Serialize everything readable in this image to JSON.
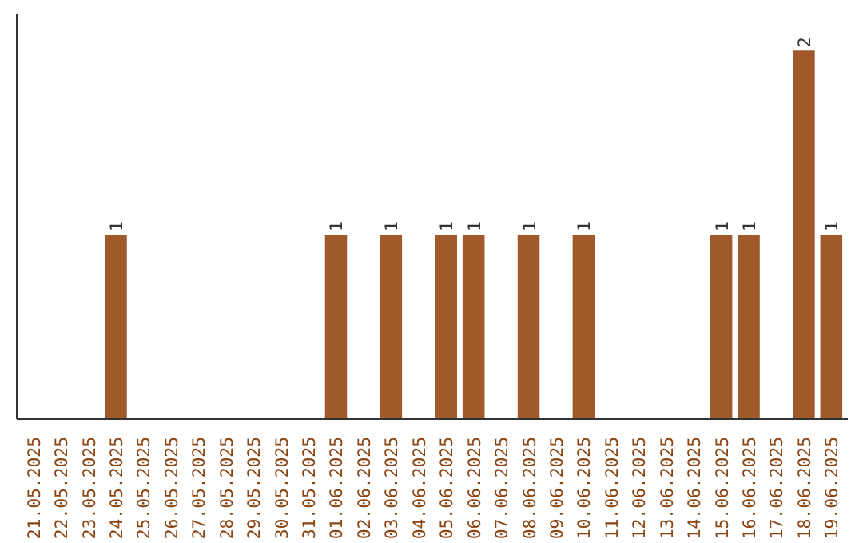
{
  "chart_data": {
    "type": "bar",
    "categories": [
      "21.05.2025",
      "22.05.2025",
      "23.05.2025",
      "24.05.2025",
      "25.05.2025",
      "26.05.2025",
      "27.05.2025",
      "28.05.2025",
      "29.05.2025",
      "30.05.2025",
      "31.05.2025",
      "01.06.2025",
      "02.06.2025",
      "03.06.2025",
      "04.06.2025",
      "05.06.2025",
      "06.06.2025",
      "07.06.2025",
      "08.06.2025",
      "09.06.2025",
      "10.06.2025",
      "11.06.2025",
      "12.06.2025",
      "13.06.2025",
      "14.06.2025",
      "15.06.2025",
      "16.06.2025",
      "17.06.2025",
      "18.06.2025",
      "19.06.2025"
    ],
    "values": [
      0,
      0,
      0,
      1,
      0,
      0,
      0,
      0,
      0,
      0,
      0,
      1,
      0,
      1,
      0,
      1,
      1,
      0,
      1,
      0,
      1,
      0,
      0,
      0,
      0,
      1,
      1,
      0,
      2,
      1
    ],
    "value_labels": [
      null,
      null,
      null,
      "1",
      null,
      null,
      null,
      null,
      null,
      null,
      null,
      "1",
      null,
      "1",
      null,
      "1",
      "1",
      null,
      "1",
      null,
      "1",
      null,
      null,
      null,
      null,
      "1",
      "1",
      null,
      "2",
      "1"
    ],
    "color": "#a0592a",
    "tick_labels": "x",
    "grid": false
  }
}
